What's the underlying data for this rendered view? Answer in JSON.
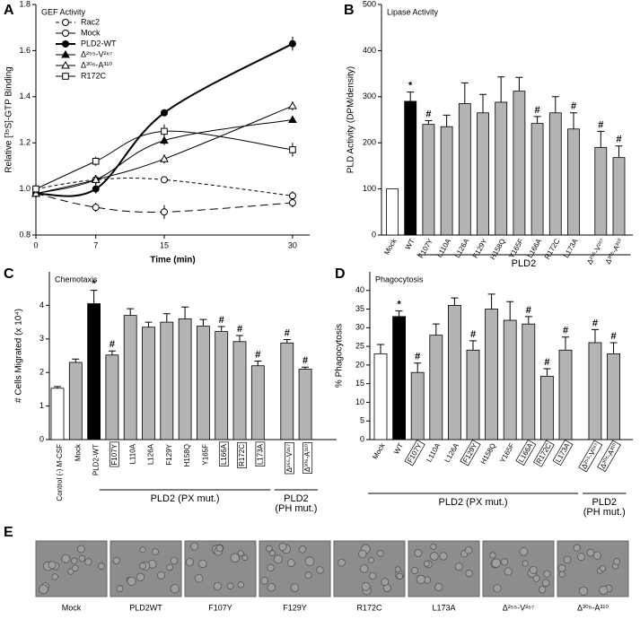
{
  "chart_data": [
    {
      "type": "line",
      "panel_label": "A",
      "title": "GEF Activity",
      "xlabel": "Time (min)",
      "ylabel": "Relative [³⁵S]-GTP Binding",
      "x": [
        0,
        7,
        15,
        30
      ],
      "xlim": [
        0,
        32
      ],
      "xticks": [
        0,
        7,
        15,
        30
      ],
      "ylim": [
        0.8,
        1.8
      ],
      "yticks": [
        0.8,
        {
          "value": 1,
          "label": "1.0"
        },
        1.2,
        1.4,
        1.6,
        1.8
      ],
      "legend": "upper left",
      "series": [
        {
          "name": "Rac2",
          "color": "#000000",
          "marker": "circle",
          "filled": false,
          "dash": "4,3",
          "width": 1,
          "values": [
            1.0,
            1.04,
            1.04,
            0.97
          ],
          "errors": [
            0.02,
            0.02,
            0.01,
            0.02
          ]
        },
        {
          "name": "Mock",
          "color": "#000000",
          "marker": "circle",
          "filled": false,
          "dash": "9,5",
          "width": 1,
          "values": [
            0.98,
            0.92,
            0.9,
            0.94
          ],
          "errors": [
            0.02,
            0.02,
            0.03,
            0.02
          ]
        },
        {
          "name": "PLD2-WT",
          "color": "#000000",
          "marker": "circle",
          "filled": true,
          "dash": "solid",
          "width": 2,
          "values": [
            0.98,
            1.0,
            1.33,
            1.63
          ],
          "errors": [
            0.02,
            0.02,
            0.01,
            0.03
          ]
        },
        {
          "name": "Δ²⁵⁵-V²⁶⁷",
          "color": "#000000",
          "marker": "triangle",
          "filled": true,
          "dash": "solid",
          "width": 1,
          "values": [
            0.98,
            1.04,
            1.21,
            1.3
          ],
          "errors": [
            0.02,
            0.02,
            0.02,
            0.01
          ]
        },
        {
          "name": "Δ³⁰⁶-A³¹⁰",
          "color": "#000000",
          "marker": "triangle",
          "filled": false,
          "dash": "solid",
          "width": 1,
          "values": [
            0.98,
            1.04,
            1.13,
            1.36
          ],
          "errors": [
            0.02,
            0.02,
            0.02,
            0.02
          ]
        },
        {
          "name": "R172C",
          "color": "#000000",
          "marker": "square",
          "filled": false,
          "dash": "solid",
          "width": 1,
          "values": [
            1.0,
            1.12,
            1.25,
            1.17
          ],
          "errors": [
            0.02,
            0.02,
            0.03,
            0.03
          ]
        }
      ]
    },
    {
      "type": "bar",
      "panel_label": "B",
      "title": "Lipase Activity",
      "ylabel": "PLD Activity (DPM/density)",
      "categories": [
        "Mock",
        "WT",
        "F107Y",
        "L110A",
        "L126A",
        "F129Y",
        "H158Q",
        "Y165F",
        "L166A",
        "R172C",
        "L173A",
        "Δ²⁵⁵-V²⁶⁷",
        "Δ³⁰⁶-A³¹⁰"
      ],
      "values": [
        100,
        290,
        240,
        235,
        285,
        265,
        288,
        312,
        242,
        265,
        230,
        190,
        168
      ],
      "errors": [
        null,
        20,
        8,
        25,
        45,
        40,
        55,
        30,
        15,
        35,
        35,
        35,
        25
      ],
      "colors": [
        "#ffffff",
        "#000000",
        "#b4b4b4",
        "#b4b4b4",
        "#b4b4b4",
        "#b4b4b4",
        "#b4b4b4",
        "#b4b4b4",
        "#b4b4b4",
        "#b4b4b4",
        "#b4b4b4",
        "#b4b4b4",
        "#b4b4b4"
      ],
      "annotations": [
        null,
        "*",
        "#",
        null,
        null,
        null,
        null,
        null,
        "#",
        null,
        "#",
        "#",
        "#"
      ],
      "ylim": [
        0,
        500
      ],
      "yticks": [
        0,
        100,
        200,
        300,
        400,
        500
      ],
      "groups": [
        {
          "lines": [
            "PLD2"
          ],
          "from": "F107Y",
          "to": "Δ³⁰⁶-A³¹⁰"
        }
      ]
    },
    {
      "type": "bar",
      "panel_label": "C",
      "title": "Chemotaxis",
      "ylabel": "# Cells Migrated (x 10⁴)",
      "categories": [
        "Control (-) M-CSF",
        "Mock",
        "PLD2-WT",
        "F107Y",
        "L110A",
        "L126A",
        "F129Y",
        "H158Q",
        "Y165F",
        "L166A",
        "R172C",
        "L173A",
        "Δ²⁵⁵-V²⁶⁷",
        "Δ³⁰⁶-A³¹⁰"
      ],
      "values": [
        1.53,
        2.3,
        4.05,
        2.52,
        3.7,
        3.35,
        3.5,
        3.6,
        3.38,
        3.22,
        2.92,
        2.2,
        2.88,
        2.1
      ],
      "errors": [
        0.05,
        0.1,
        0.4,
        0.12,
        0.2,
        0.15,
        0.25,
        0.35,
        0.2,
        0.15,
        0.18,
        0.14,
        0.1,
        0.06
      ],
      "colors": [
        "#ffffff",
        "#b4b4b4",
        "#000000",
        "#b4b4b4",
        "#b4b4b4",
        "#b4b4b4",
        "#b4b4b4",
        "#b4b4b4",
        "#b4b4b4",
        "#b4b4b4",
        "#b4b4b4",
        "#b4b4b4",
        "#b4b4b4",
        "#b4b4b4"
      ],
      "annotations": [
        null,
        null,
        "*",
        "#",
        null,
        null,
        null,
        null,
        null,
        "#",
        "#",
        "#",
        "#",
        "#"
      ],
      "boxed": [
        false,
        false,
        false,
        true,
        false,
        false,
        false,
        false,
        false,
        true,
        true,
        true,
        true,
        true
      ],
      "ylim": [
        0,
        5
      ],
      "yticks": [
        0,
        1,
        2,
        3,
        4
      ],
      "groups": [
        {
          "lines": [
            "PLD2 (PX mut.)"
          ],
          "from": "F107Y",
          "to": "L173A"
        },
        {
          "lines": [
            "PLD2",
            "(PH mut.)"
          ],
          "from": "Δ²⁵⁵-V²⁶⁷",
          "to": "Δ³⁰⁶-A³¹⁰"
        }
      ]
    },
    {
      "type": "bar",
      "panel_label": "D",
      "title": "Phagocytosis",
      "ylabel": "% Phagocytosis",
      "categories": [
        "Mock",
        "WT",
        "F107Y",
        "L110A",
        "L126A",
        "F129Y",
        "H158Q",
        "Y165F",
        "L166A",
        "R172C",
        "L173A",
        "Δ²⁵⁵-V²⁶⁷",
        "Δ³⁰⁶-A³¹⁰"
      ],
      "values": [
        23,
        33,
        18,
        28,
        36,
        24,
        35,
        32,
        31,
        17,
        24,
        26,
        23
      ],
      "errors": [
        2.5,
        1.5,
        2.5,
        3,
        2,
        2.5,
        4,
        5,
        2,
        2,
        3.5,
        3.5,
        3
      ],
      "colors": [
        "#ffffff",
        "#000000",
        "#b4b4b4",
        "#b4b4b4",
        "#b4b4b4",
        "#b4b4b4",
        "#b4b4b4",
        "#b4b4b4",
        "#b4b4b4",
        "#b4b4b4",
        "#b4b4b4",
        "#b4b4b4",
        "#b4b4b4"
      ],
      "annotations": [
        null,
        "*",
        "#",
        null,
        null,
        "#",
        null,
        null,
        "#",
        "#",
        "#",
        "#",
        "#"
      ],
      "boxed": [
        false,
        false,
        true,
        false,
        false,
        true,
        false,
        false,
        true,
        true,
        true,
        true,
        true
      ],
      "ylim": [
        0,
        45
      ],
      "yticks": [
        0,
        5,
        10,
        15,
        20,
        25,
        30,
        35,
        40
      ],
      "groups": [
        {
          "lines": [
            "PLD2 (PX mut.)"
          ],
          "from": "Mock",
          "to": "L173A"
        },
        {
          "lines": [
            "PLD2",
            "(PH mut.)"
          ],
          "from": "Δ²⁵⁵-V²⁶⁷",
          "to": "Δ³⁰⁶-A³¹⁰"
        }
      ]
    }
  ],
  "panel_e": {
    "panel_label": "E",
    "labels": [
      "Mock",
      "PLD2WT",
      "F107Y",
      "F129Y",
      "R172C",
      "L173A",
      "Δ²⁵⁵-V²⁶⁷",
      "Δ³⁰⁶-A³¹⁰"
    ]
  }
}
